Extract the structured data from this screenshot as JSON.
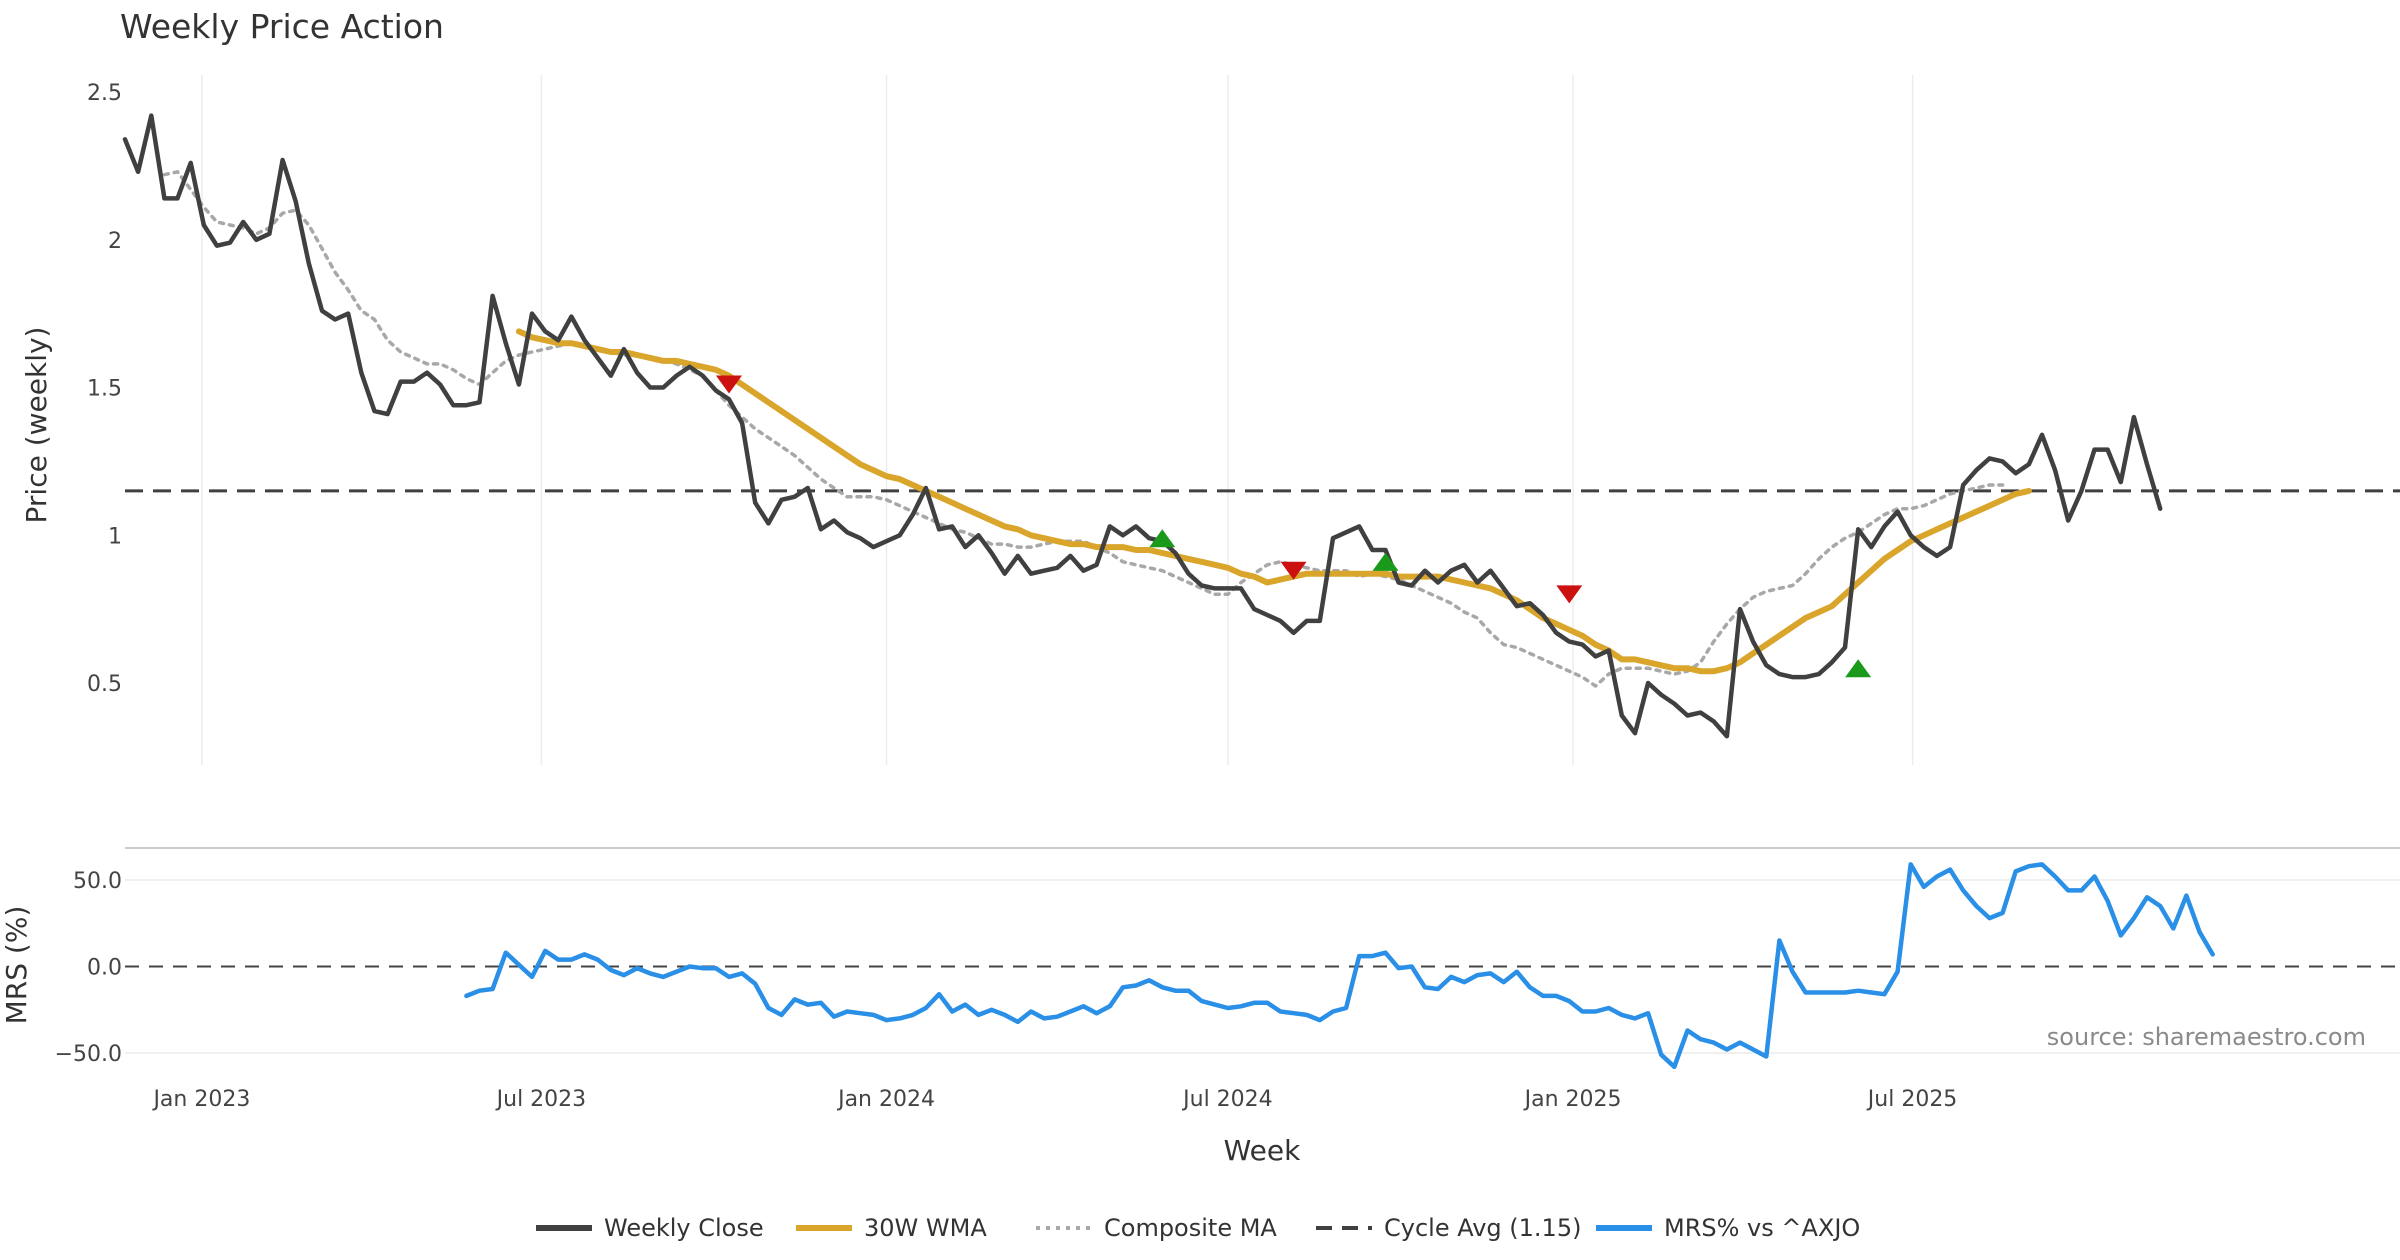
{
  "chart_data": [
    {
      "type": "line",
      "title": "Weekly Price Action",
      "ylabel": "Price (weekly)",
      "xlabel": "Week",
      "ylim": [
        0.2,
        2.55
      ],
      "yticks": [
        0.5,
        1,
        1.5,
        2,
        2.5
      ],
      "ytick_labels": [
        "0.5",
        "1",
        "1.5",
        "2",
        "2.5"
      ],
      "x_start": "2022-11-21",
      "x_step_days": 7,
      "xticks": [
        "Jan 2023",
        "Jul 2023",
        "Jan 2024",
        "Jul 2024",
        "Jan 2025",
        "Jul 2025"
      ],
      "xtick_dates": [
        "2023-01-01",
        "2023-07-01",
        "2024-01-01",
        "2024-07-01",
        "2025-01-01",
        "2025-07-01"
      ],
      "grid": "vertical",
      "cycle_avg": 1.15,
      "series": [
        {
          "name": "Weekly Close",
          "color": "#404040",
          "start_index": 0,
          "values": [
            2.34,
            2.23,
            2.42,
            2.14,
            2.14,
            2.26,
            2.05,
            1.98,
            1.99,
            2.06,
            2.0,
            2.02,
            2.27,
            2.13,
            1.92,
            1.76,
            1.73,
            1.75,
            1.55,
            1.42,
            1.41,
            1.52,
            1.52,
            1.55,
            1.51,
            1.44,
            1.44,
            1.45,
            1.81,
            1.65,
            1.51,
            1.75,
            1.69,
            1.66,
            1.74,
            1.66,
            1.6,
            1.54,
            1.63,
            1.55,
            1.5,
            1.5,
            1.54,
            1.57,
            1.54,
            1.49,
            1.46,
            1.38,
            1.11,
            1.04,
            1.12,
            1.13,
            1.16,
            1.02,
            1.05,
            1.01,
            0.99,
            0.96,
            0.98,
            1.0,
            1.07,
            1.16,
            1.02,
            1.03,
            0.96,
            1.0,
            0.94,
            0.87,
            0.93,
            0.87,
            0.88,
            0.89,
            0.93,
            0.88,
            0.9,
            1.03,
            1.0,
            1.03,
            0.99,
            0.98,
            0.94,
            0.87,
            0.83,
            0.82,
            0.82,
            0.82,
            0.75,
            0.73,
            0.71,
            0.67,
            0.71,
            0.71,
            0.99,
            1.01,
            1.03,
            0.95,
            0.95,
            0.84,
            0.83,
            0.88,
            0.84,
            0.88,
            0.9,
            0.84,
            0.88,
            0.82,
            0.76,
            0.77,
            0.73,
            0.67,
            0.64,
            0.63,
            0.59,
            0.61,
            0.39,
            0.33,
            0.5,
            0.46,
            0.43,
            0.39,
            0.4,
            0.37,
            0.32,
            0.75,
            0.64,
            0.56,
            0.53,
            0.52,
            0.52,
            0.53,
            0.57,
            0.62,
            1.02,
            0.96,
            1.03,
            1.08,
            1.0,
            0.96,
            0.93,
            0.96,
            1.17,
            1.22,
            1.26,
            1.25,
            1.21,
            1.24,
            1.34,
            1.22,
            1.05,
            1.15,
            1.29,
            1.29,
            1.18,
            1.4,
            1.24,
            1.09
          ]
        },
        {
          "name": "30W WMA",
          "color": "#d9a52b",
          "start_index": 30,
          "values": [
            1.69,
            1.67,
            1.66,
            1.65,
            1.65,
            1.64,
            1.63,
            1.62,
            1.62,
            1.61,
            1.6,
            1.59,
            1.59,
            1.58,
            1.57,
            1.56,
            1.54,
            1.51,
            1.48,
            1.45,
            1.42,
            1.39,
            1.36,
            1.33,
            1.3,
            1.27,
            1.24,
            1.22,
            1.2,
            1.19,
            1.17,
            1.15,
            1.13,
            1.11,
            1.09,
            1.07,
            1.05,
            1.03,
            1.02,
            1.0,
            0.99,
            0.98,
            0.97,
            0.97,
            0.96,
            0.96,
            0.96,
            0.95,
            0.95,
            0.94,
            0.93,
            0.92,
            0.91,
            0.9,
            0.89,
            0.87,
            0.86,
            0.84,
            0.85,
            0.86,
            0.87,
            0.87,
            0.87,
            0.87,
            0.87,
            0.87,
            0.87,
            0.86,
            0.86,
            0.86,
            0.86,
            0.85,
            0.84,
            0.83,
            0.82,
            0.8,
            0.78,
            0.75,
            0.72,
            0.7,
            0.68,
            0.66,
            0.63,
            0.61,
            0.58,
            0.58,
            0.57,
            0.56,
            0.55,
            0.55,
            0.54,
            0.54,
            0.55,
            0.57,
            0.6,
            0.63,
            0.66,
            0.69,
            0.72,
            0.74,
            0.76,
            0.8,
            0.84,
            0.88,
            0.92,
            0.95,
            0.98,
            1.0,
            1.02,
            1.04,
            1.06,
            1.08,
            1.1,
            1.12,
            1.14,
            1.15
          ]
        },
        {
          "name": "Composite MA",
          "color": "#a8a8a8",
          "start_index": 3,
          "values": [
            2.22,
            2.23,
            2.17,
            2.11,
            2.06,
            2.05,
            2.04,
            2.02,
            2.04,
            2.09,
            2.1,
            2.05,
            1.97,
            1.89,
            1.83,
            1.76,
            1.73,
            1.66,
            1.62,
            1.6,
            1.58,
            1.58,
            1.56,
            1.53,
            1.51,
            1.55,
            1.59,
            1.61,
            1.62,
            1.63,
            1.64,
            1.65,
            1.64,
            1.63,
            1.62,
            1.61,
            1.61,
            1.6,
            1.59,
            1.58,
            1.56,
            1.54,
            1.49,
            1.44,
            1.4,
            1.36,
            1.33,
            1.3,
            1.27,
            1.23,
            1.19,
            1.16,
            1.13,
            1.13,
            1.13,
            1.12,
            1.1,
            1.08,
            1.06,
            1.04,
            1.02,
            1.01,
            0.99,
            0.97,
            0.97,
            0.96,
            0.96,
            0.97,
            0.98,
            0.98,
            0.98,
            0.96,
            0.94,
            0.91,
            0.9,
            0.89,
            0.88,
            0.86,
            0.84,
            0.82,
            0.8,
            0.8,
            0.84,
            0.87,
            0.9,
            0.91,
            0.9,
            0.89,
            0.88,
            0.88,
            0.88,
            0.86,
            0.87,
            0.86,
            0.85,
            0.83,
            0.81,
            0.79,
            0.77,
            0.74,
            0.72,
            0.67,
            0.63,
            0.62,
            0.6,
            0.58,
            0.56,
            0.54,
            0.52,
            0.49,
            0.53,
            0.55,
            0.55,
            0.55,
            0.54,
            0.53,
            0.54,
            0.57,
            0.64,
            0.7,
            0.75,
            0.79,
            0.81,
            0.82,
            0.83,
            0.87,
            0.92,
            0.96,
            0.99,
            1.01,
            1.04,
            1.07,
            1.09,
            1.09,
            1.1,
            1.12,
            1.14,
            1.15,
            1.16,
            1.17,
            1.17
          ]
        }
      ],
      "signals": [
        {
          "type": "sell",
          "index": 46,
          "value": 1.51,
          "color": "#cc1111"
        },
        {
          "type": "buy",
          "index": 79,
          "value": 0.99,
          "color": "#1a9a1a"
        },
        {
          "type": "sell",
          "index": 89,
          "value": 0.88,
          "color": "#cc1111"
        },
        {
          "type": "buy",
          "index": 96,
          "value": 0.91,
          "color": "#1a9a1a"
        },
        {
          "type": "sell",
          "index": 110,
          "value": 0.8,
          "color": "#cc1111"
        },
        {
          "type": "buy",
          "index": 132,
          "value": 0.55,
          "color": "#1a9a1a"
        }
      ]
    },
    {
      "type": "line",
      "ylabel": "MRS (%)",
      "ylim": [
        -60,
        66
      ],
      "yticks": [
        50,
        0,
        -50
      ],
      "ytick_labels": [
        "50.0",
        "0.0",
        "−50.0"
      ],
      "zero_line": 0,
      "series": [
        {
          "name": "MRS% vs ^AXJO",
          "color": "#2a8fe6",
          "start_index": 26,
          "values": [
            -17,
            -14,
            -13,
            8,
            1,
            -6,
            9,
            4,
            4,
            7,
            4,
            -2,
            -5,
            -1,
            -4,
            -6,
            -3,
            0,
            -1,
            -1,
            -6,
            -4,
            -10,
            -24,
            -28,
            -19,
            -22,
            -21,
            -29,
            -26,
            -27,
            -28,
            -31,
            -30,
            -28,
            -24,
            -16,
            -26,
            -22,
            -28,
            -25,
            -28,
            -32,
            -26,
            -30,
            -29,
            -26,
            -23,
            -27,
            -23,
            -12,
            -11,
            -8,
            -12,
            -14,
            -14,
            -20,
            -22,
            -24,
            -23,
            -21,
            -21,
            -26,
            -27,
            -28,
            -31,
            -26,
            -24,
            6,
            6,
            8,
            -1,
            0,
            -12,
            -13,
            -6,
            -9,
            -5,
            -4,
            -9,
            -3,
            -12,
            -17,
            -17,
            -20,
            -26,
            -26,
            -24,
            -28,
            -30,
            -27,
            -51,
            -58,
            -37,
            -42,
            -44,
            -48,
            -44,
            -48,
            -52,
            15,
            -3,
            -15,
            -15,
            -15,
            -15,
            -14,
            -15,
            -16,
            -3,
            59,
            46,
            52,
            56,
            44,
            35,
            28,
            31,
            55,
            58,
            59,
            52,
            44,
            44,
            52,
            38,
            18,
            28,
            40,
            35,
            22,
            41,
            20,
            7
          ]
        }
      ],
      "source_note": "source: sharemaestro.com"
    }
  ],
  "legend": {
    "placement": "bottom-center",
    "items": [
      {
        "label": "Weekly Close",
        "style": "solid",
        "color": "#404040"
      },
      {
        "label": "30W WMA",
        "style": "solid",
        "color": "#d9a52b"
      },
      {
        "label": "Composite MA",
        "style": "dotted",
        "color": "#a8a8a8"
      },
      {
        "label": "Cycle Avg (1.15)",
        "style": "dashed",
        "color": "#404040"
      },
      {
        "label": "MRS% vs ^AXJO",
        "style": "solid",
        "color": "#2a8fe6"
      }
    ]
  }
}
